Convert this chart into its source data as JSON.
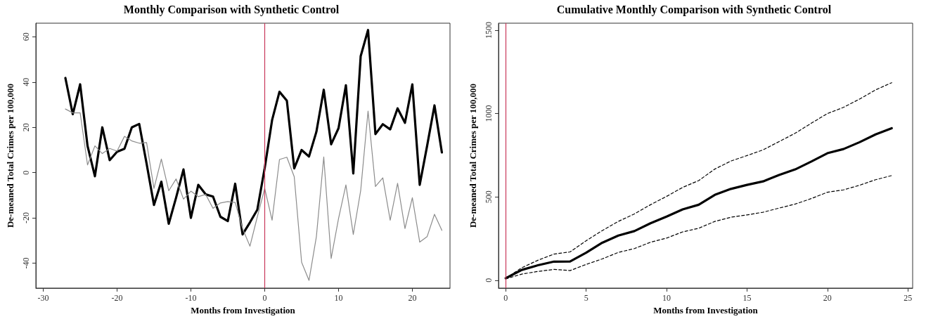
{
  "chart_data": [
    {
      "type": "line",
      "title": "Monthly Comparison with Synthetic Control",
      "xlabel": "Months from Investigation",
      "ylabel": "De-meaned Total Crimes per 100,000",
      "x": [
        -27,
        -26,
        -25,
        -24,
        -23,
        -22,
        -21,
        -20,
        -19,
        -18,
        -17,
        -16,
        -15,
        -14,
        -13,
        -12,
        -11,
        -10,
        -9,
        -8,
        -7,
        -6,
        -5,
        -4,
        -3,
        -2,
        -1,
        0,
        1,
        2,
        3,
        4,
        5,
        6,
        7,
        8,
        9,
        10,
        11,
        12,
        13,
        14,
        15,
        16,
        17,
        18,
        19,
        20,
        21,
        22,
        23,
        24
      ],
      "series": [
        {
          "color": "#000000",
          "values": [
            41.8,
            25.8,
            39,
            11.8,
            -1.6,
            20,
            5.5,
            9.2,
            10.5,
            20,
            21.5,
            4,
            -14.3,
            -4,
            -22.6,
            -11,
            1.4,
            -20,
            -5.4,
            -9.6,
            -10.6,
            -19.5,
            -21.4,
            -4.9,
            -27.3,
            -22,
            -16.4,
            2,
            23.2,
            35.7,
            31.8,
            1.9,
            10,
            7.1,
            18,
            36.6,
            12.5,
            19.6,
            38.6,
            -0.4,
            51.4,
            63,
            17,
            21.4,
            19.1,
            28.4,
            22,
            39,
            -5.4,
            11.8,
            29.7,
            8.9
          ]
        },
        {
          "color": "#8c8c8c",
          "values": [
            28.1,
            26.4,
            26.4,
            3.4,
            11.8,
            8.4,
            10.7,
            9.5,
            16,
            14,
            13,
            13.3,
            -7,
            6,
            -8,
            -2.8,
            -11.7,
            -8.2,
            -10.6,
            -9.6,
            -15.8,
            -13.4,
            -12.8,
            -13.2,
            -24.7,
            -32.5,
            -19.5,
            -7,
            -21,
            5.8,
            6.8,
            -1.8,
            -39.6,
            -47.6,
            -28.3,
            6.9,
            -37.9,
            -20.3,
            -5.4,
            -27.3,
            -8,
            27.2,
            -6.1,
            -2.3,
            -21,
            -4.7,
            -24.7,
            -11.1,
            -30.7,
            -28.3,
            -18.4,
            -25.5
          ]
        }
      ],
      "xlim": [
        -31,
        25.1
      ],
      "xticks": [
        -30,
        -20,
        -10,
        0,
        10,
        20
      ],
      "ylim": [
        -51,
        66
      ],
      "yticks": [
        -40,
        -20,
        0,
        20,
        40,
        60
      ],
      "ref_lines": [
        {
          "axis": "x",
          "value": 0,
          "color": "#c8385a"
        }
      ],
      "grid": false,
      "marker": "none",
      "line_style": "solid"
    },
    {
      "type": "line",
      "title": "Cumulative Monthly Comparison with Synthetic Control",
      "xlabel": "Months from Investigation",
      "ylabel": "De-meaned Total Crimes per 100,000",
      "x": [
        0,
        1,
        2,
        3,
        4,
        5,
        6,
        7,
        8,
        9,
        10,
        11,
        12,
        13,
        14,
        15,
        16,
        17,
        18,
        19,
        20,
        21,
        22,
        23,
        24
      ],
      "series": [
        {
          "color": "#000000",
          "values": [
            12,
            62,
            90,
            112,
            113,
            165,
            225,
            268,
            295,
            342,
            382,
            425,
            453,
            512,
            548,
            572,
            593,
            632,
            665,
            712,
            762,
            787,
            828,
            875,
            912
          ]
        },
        {
          "color": "#000000",
          "line_style": "dashed",
          "values": [
            12,
            75,
            120,
            157,
            170,
            237,
            298,
            353,
            398,
            453,
            503,
            557,
            598,
            667,
            715,
            748,
            782,
            832,
            882,
            942,
            1000,
            1037,
            1087,
            1142,
            1185
          ]
        },
        {
          "color": "#000000",
          "line_style": "dashed",
          "values": [
            8,
            37,
            53,
            65,
            58,
            95,
            128,
            167,
            190,
            228,
            253,
            290,
            312,
            353,
            378,
            392,
            408,
            433,
            457,
            490,
            528,
            542,
            570,
            603,
            628
          ]
        }
      ],
      "xlim": [
        -0.45,
        25.3
      ],
      "xticks": [
        0,
        5,
        10,
        15,
        20,
        25
      ],
      "ylim": [
        -47,
        1542
      ],
      "yticks": [
        0,
        500,
        1000,
        1500
      ],
      "ref_lines": [
        {
          "axis": "x",
          "value": 0,
          "color": "#c8385a"
        }
      ],
      "grid": false,
      "marker": "none",
      "line_style": "solid"
    }
  ]
}
